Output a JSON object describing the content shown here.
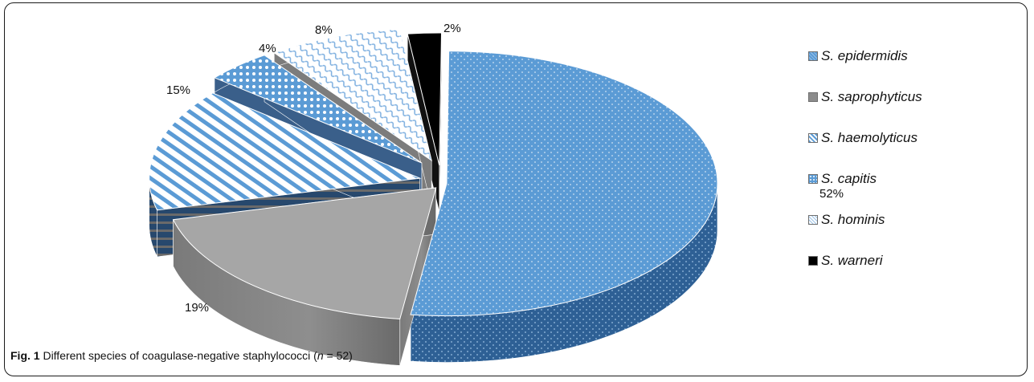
{
  "chart_data": {
    "type": "pie",
    "title": "",
    "categories": [
      "S. epidermidis",
      "S. saprophyticus",
      "S. haemolyticus",
      "S. capitis",
      "S. hominis",
      "S. warneri"
    ],
    "values": [
      52,
      19,
      15,
      4,
      8,
      2
    ],
    "value_labels": [
      "52%",
      "19%",
      "15%",
      "4%",
      "8%",
      "2%"
    ],
    "legend_position": "right",
    "colors": {
      "S. epidermidis": "#5b9bd5",
      "S. saprophyticus": "#a5a5a5",
      "S. haemolyticus": "#5b9bd5",
      "S. capitis": "#5b9bd5",
      "S. hominis": "#9dc3e6",
      "S. warneri": "#000000"
    }
  },
  "caption": {
    "label": "Fig. 1",
    "text": " Different species of coagulase-negative staphylococci (",
    "n_symbol": "n",
    "n_value": " = 52)"
  }
}
